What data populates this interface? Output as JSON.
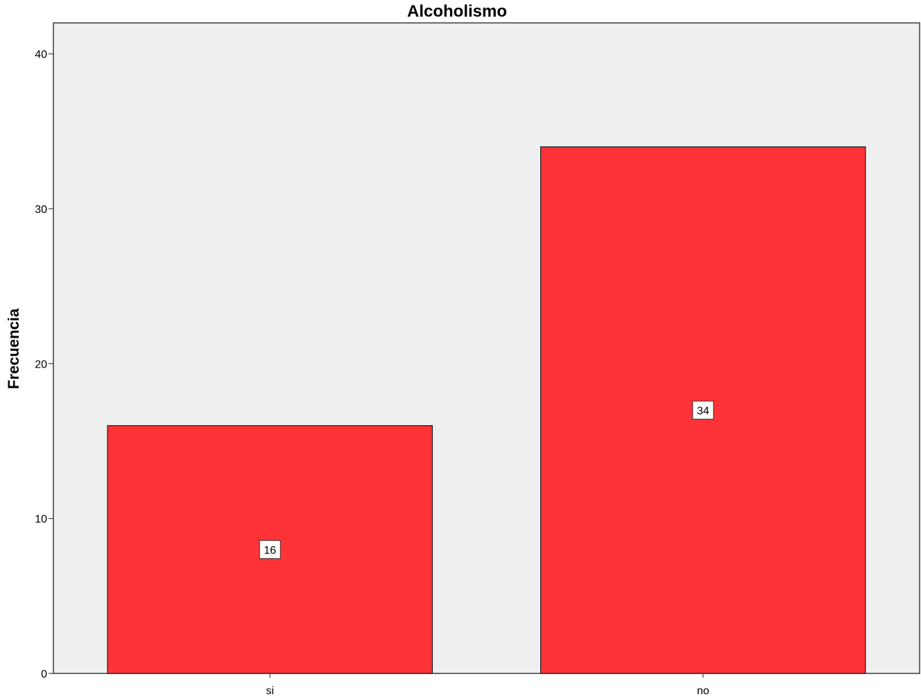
{
  "chart_data": {
    "type": "bar",
    "title": "Alcoholismo",
    "xlabel": "",
    "ylabel": "Frecuencia",
    "categories": [
      "si",
      "no"
    ],
    "values": [
      16,
      34
    ],
    "data_labels": [
      "16",
      "34"
    ],
    "ylim": [
      0,
      42
    ],
    "yticks": [
      0,
      10,
      20,
      30,
      40
    ],
    "ytick_labels": [
      "0",
      "10",
      "20",
      "30",
      "40"
    ],
    "grid": false,
    "legend": "none",
    "colors": {
      "bar": "#fe3337",
      "plot_background": "#efefef",
      "axis": "#3b3b3b"
    }
  }
}
